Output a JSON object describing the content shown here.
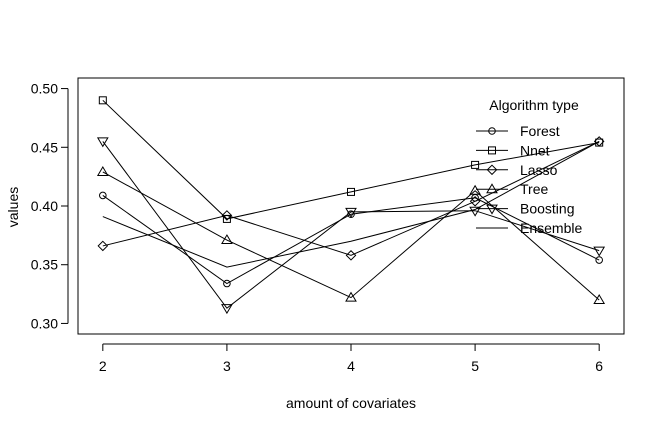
{
  "chart_data": {
    "type": "line",
    "title": "",
    "xlabel": "amount of covariates",
    "ylabel": "values",
    "x": [
      2,
      3,
      4,
      5,
      6
    ],
    "x_ticks": [
      "2",
      "3",
      "4",
      "5",
      "6"
    ],
    "y_ticks": [
      "0.30",
      "0.35",
      "0.40",
      "0.45",
      "0.50"
    ],
    "xlim": [
      1.8,
      6.2
    ],
    "ylim": [
      0.291,
      0.509
    ],
    "grid": false,
    "legend": {
      "title": "Algorithm type",
      "position": "top-right"
    },
    "series": [
      {
        "name": "Forest",
        "marker": "circle",
        "values": [
          0.409,
          0.334,
          0.393,
          0.407,
          0.354
        ]
      },
      {
        "name": "Nnet",
        "marker": "square",
        "values": [
          0.49,
          0.389,
          0.412,
          0.435,
          0.454
        ]
      },
      {
        "name": "Lasso",
        "marker": "diamond",
        "values": [
          0.366,
          0.392,
          0.358,
          0.404,
          0.455
        ]
      },
      {
        "name": "Tree",
        "marker": "triangle-up",
        "values": [
          0.429,
          0.371,
          0.322,
          0.413,
          0.32
        ]
      },
      {
        "name": "Boosting",
        "marker": "triangle-down",
        "values": [
          0.455,
          0.313,
          0.395,
          0.396,
          0.362
        ]
      },
      {
        "name": "Ensemble",
        "marker": "none",
        "values": [
          0.391,
          0.348,
          0.37,
          0.397,
          0.455
        ]
      }
    ]
  }
}
